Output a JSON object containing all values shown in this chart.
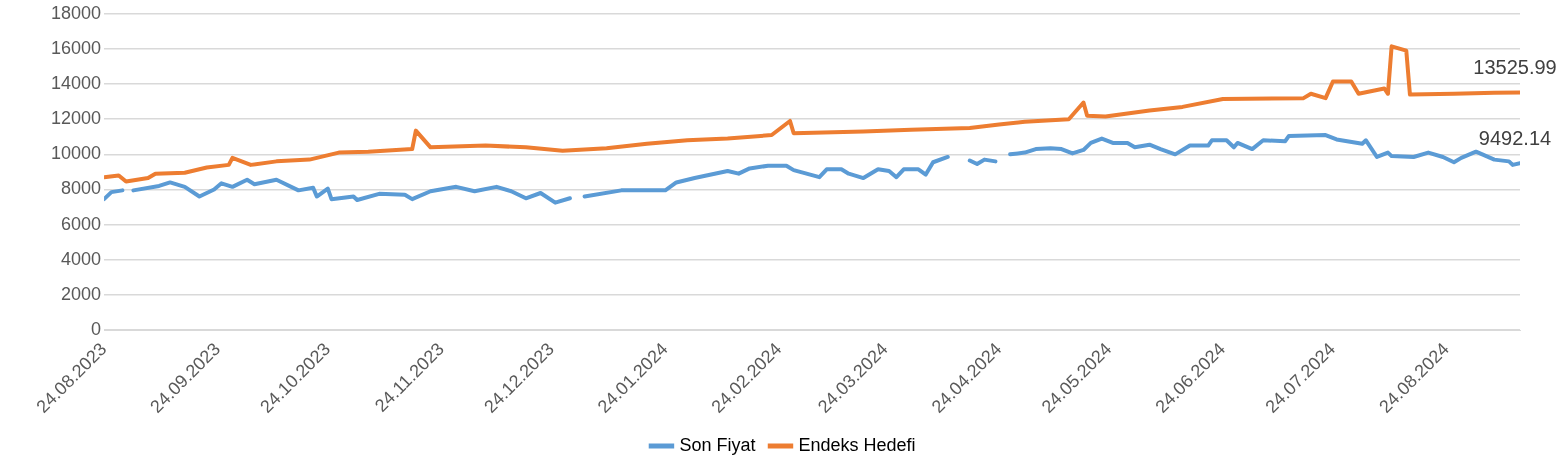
{
  "chart_data": {
    "type": "line",
    "ylim": [
      0,
      18000
    ],
    "yticks": [
      0,
      2000,
      4000,
      6000,
      8000,
      10000,
      12000,
      14000,
      16000,
      18000
    ],
    "xlim": [
      "2023-08-24",
      "2024-09-13"
    ],
    "xticks": [
      {
        "value": "2023-08-24",
        "label": "24.08.2023"
      },
      {
        "value": "2023-09-24",
        "label": "24.09.2023"
      },
      {
        "value": "2023-10-24",
        "label": "24.10.2023"
      },
      {
        "value": "2023-11-24",
        "label": "24.11.2023"
      },
      {
        "value": "2023-12-24",
        "label": "24.12.2023"
      },
      {
        "value": "2024-01-24",
        "label": "24.01.2024"
      },
      {
        "value": "2024-02-24",
        "label": "24.02.2024"
      },
      {
        "value": "2024-03-24",
        "label": "24.03.2024"
      },
      {
        "value": "2024-04-24",
        "label": "24.04.2024"
      },
      {
        "value": "2024-05-24",
        "label": "24.05.2024"
      },
      {
        "value": "2024-06-24",
        "label": "24.06.2024"
      },
      {
        "value": "2024-07-24",
        "label": "24.07.2024"
      },
      {
        "value": "2024-08-24",
        "label": "24.08.2024"
      }
    ],
    "grid": "y",
    "legend": "bottom",
    "marker": "none",
    "line_style": "solid",
    "series": [
      {
        "name": "Son Fiyat",
        "color": "#5b9bd5",
        "x": [
          "2023-08-24",
          "2023-08-26",
          "2023-08-29",
          "2023-08-31",
          "2023-09-01",
          "2023-09-08",
          "2023-09-11",
          "2023-09-15",
          "2023-09-19",
          "2023-09-23",
          "2023-09-25",
          "2023-09-28",
          "2023-10-02",
          "2023-10-04",
          "2023-10-10",
          "2023-10-16",
          "2023-10-20",
          "2023-10-21",
          "2023-10-24",
          "2023-10-25",
          "2023-10-31",
          "2023-11-01",
          "2023-11-07",
          "2023-11-14",
          "2023-11-16",
          "2023-11-21",
          "2023-11-28",
          "2023-12-03",
          "2023-12-09",
          "2023-12-13",
          "2023-12-17",
          "2023-12-21",
          "2023-12-25",
          "2023-12-29",
          "2023-12-31",
          "2024-01-02",
          "2024-01-12",
          "2024-01-24",
          "2024-01-27",
          "2024-02-01",
          "2024-02-10",
          "2024-02-13",
          "2024-02-16",
          "2024-02-21",
          "2024-02-26",
          "2024-02-28",
          "2024-03-06",
          "2024-03-08",
          "2024-03-12",
          "2024-03-14",
          "2024-03-18",
          "2024-03-22",
          "2024-03-25",
          "2024-03-27",
          "2024-03-29",
          "2024-04-02",
          "2024-04-04",
          "2024-04-06",
          "2024-04-10",
          "2024-04-14",
          "2024-04-16",
          "2024-04-18",
          "2024-04-20",
          "2024-04-23",
          "2024-04-25",
          "2024-04-27",
          "2024-05-01",
          "2024-05-04",
          "2024-05-08",
          "2024-05-11",
          "2024-05-14",
          "2024-05-17",
          "2024-05-19",
          "2024-05-22",
          "2024-05-25",
          "2024-05-29",
          "2024-05-31",
          "2024-06-04",
          "2024-06-07",
          "2024-06-11",
          "2024-06-15",
          "2024-06-20",
          "2024-06-21",
          "2024-06-25",
          "2024-06-27",
          "2024-06-28",
          "2024-07-02",
          "2024-07-05",
          "2024-07-11",
          "2024-07-12",
          "2024-07-22",
          "2024-07-25",
          "2024-08-01",
          "2024-08-02",
          "2024-08-05",
          "2024-08-08",
          "2024-08-09",
          "2024-08-15",
          "2024-08-19",
          "2024-08-23",
          "2024-08-26",
          "2024-08-28",
          "2024-09-01",
          "2024-09-06",
          "2024-09-10",
          "2024-09-11",
          "2024-09-13"
        ],
        "values": [
          7450,
          7850,
          7950,
          null,
          7950,
          8200,
          8400,
          8150,
          7600,
          8000,
          8350,
          8150,
          8550,
          8300,
          8550,
          7950,
          8100,
          7600,
          8050,
          7450,
          7600,
          7400,
          7750,
          7700,
          7450,
          7900,
          8150,
          7900,
          8150,
          7900,
          7500,
          7800,
          7250,
          7500,
          null,
          7600,
          7950,
          7950,
          8400,
          8650,
          9050,
          8900,
          9200,
          9350,
          9350,
          9100,
          8700,
          9150,
          9150,
          8900,
          8650,
          9150,
          9050,
          8700,
          9150,
          9150,
          8850,
          9550,
          9850,
          null,
          9650,
          9450,
          9700,
          9600,
          null,
          10000,
          10100,
          10300,
          10350,
          10300,
          10050,
          10250,
          10650,
          10900,
          10650,
          10650,
          10400,
          10550,
          10300,
          10000,
          10500,
          10500,
          10800,
          10800,
          10400,
          10650,
          10300,
          10800,
          10750,
          11050,
          11100,
          10850,
          10600,
          10800,
          9850,
          10100,
          9900,
          9850,
          10100,
          9850,
          9550,
          9800,
          10150,
          9700,
          9600,
          9400,
          9492.14
        ]
      },
      {
        "name": "Endeks Hedefi",
        "color": "#ed7d31",
        "x": [
          "2023-08-24",
          "2023-08-28",
          "2023-08-30",
          "2023-09-05",
          "2023-09-07",
          "2023-09-15",
          "2023-09-21",
          "2023-09-27",
          "2023-09-28",
          "2023-10-03",
          "2023-10-10",
          "2023-10-19",
          "2023-10-27",
          "2023-11-04",
          "2023-11-16",
          "2023-11-17",
          "2023-11-21",
          "2023-12-06",
          "2023-12-17",
          "2023-12-27",
          "2024-01-08",
          "2024-01-19",
          "2024-01-30",
          "2024-02-10",
          "2024-02-22",
          "2024-02-27",
          "2024-02-28",
          "2024-03-18",
          "2024-03-31",
          "2024-04-16",
          "2024-04-24",
          "2024-05-01",
          "2024-05-13",
          "2024-05-17",
          "2024-05-18",
          "2024-05-23",
          "2024-06-04",
          "2024-06-13",
          "2024-06-24",
          "2024-07-16",
          "2024-07-18",
          "2024-07-22",
          "2024-07-24",
          "2024-07-29",
          "2024-07-31",
          "2024-08-07",
          "2024-08-08",
          "2024-08-09",
          "2024-08-13",
          "2024-08-14",
          "2024-08-26",
          "2024-09-06",
          "2024-09-13"
        ],
        "values": [
          8700,
          8800,
          8450,
          8650,
          8900,
          8950,
          9250,
          9400,
          9800,
          9400,
          9600,
          9700,
          10100,
          10150,
          10300,
          11350,
          10400,
          10500,
          10400,
          10200,
          10350,
          10600,
          10800,
          10900,
          11100,
          11900,
          11200,
          11300,
          11400,
          11500,
          11700,
          11850,
          12000,
          12950,
          12200,
          12150,
          12500,
          12700,
          13150,
          13200,
          13450,
          13200,
          14150,
          14150,
          13450,
          13750,
          13450,
          16150,
          15900,
          13400,
          13450,
          13500,
          13525.99
        ]
      }
    ],
    "annotations": [
      {
        "text": "13525.99",
        "x": "2024-09-13",
        "y": 13525.99
      },
      {
        "text": "9492.14",
        "x": "2024-09-13",
        "y": 9492.14
      }
    ]
  }
}
